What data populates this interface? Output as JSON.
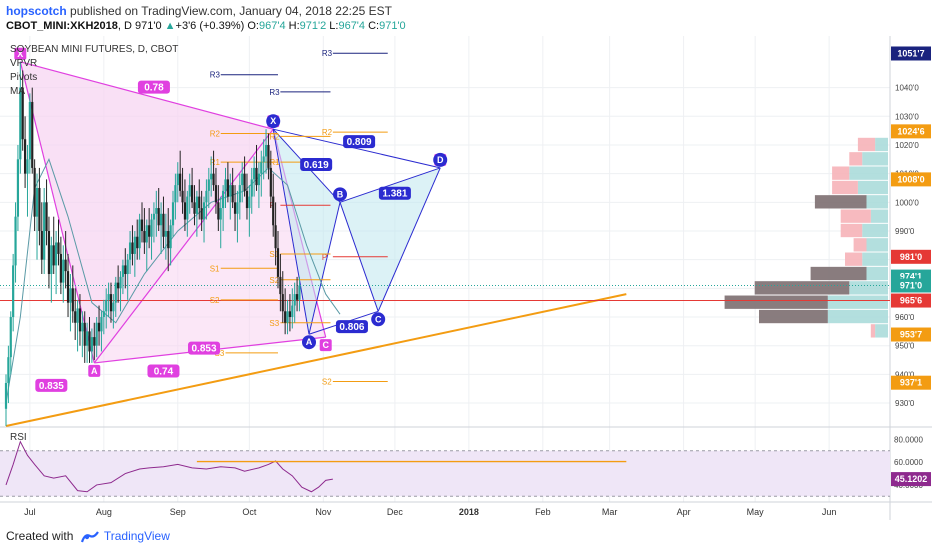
{
  "header": {
    "author": "hopscotch",
    "published_text": "published on TradingView.com, January 04, 2018 22:25 EST",
    "symbol": "CBOT_MINI:XKH2018",
    "interval": "D",
    "last": "971'0",
    "change_arrow": "▲",
    "change": "+3'6 (+0.39%)",
    "open_label": "O:",
    "open": "967'4",
    "high_label": "H:",
    "high": "971'2",
    "low_label": "L:",
    "low": "967'4",
    "close_label": "C:",
    "close": "971'0"
  },
  "legend": [
    "SOYBEAN MINI FUTURES, D, CBOT",
    "VPVR",
    "Pivots",
    "MA"
  ],
  "footer": {
    "created_with": "Created with",
    "brand": "TradingView"
  },
  "colors": {
    "up": "#26a69a",
    "down": "#ef5350",
    "candle": "#222222",
    "pink": "#e040e0",
    "blue": "#2b2bd0",
    "orange": "#f39c12",
    "red_line": "#e53935",
    "ma": "#5a9aa6",
    "rsi": "#8e2a8e"
  },
  "chart_data": {
    "type": "candlestick",
    "title": "SOYBEAN MINI FUTURES, D, CBOT",
    "x_tick_labels": [
      "Jul",
      "Aug",
      "Sep",
      "Oct",
      "Nov",
      "Dec",
      "2018",
      "Feb",
      "Mar",
      "Apr",
      "May",
      "Jun"
    ],
    "y_tick_labels": [
      "930'0",
      "940'0",
      "950'0",
      "960'0",
      "970'0",
      "980'0",
      "990'0",
      "1000'0",
      "1010'0",
      "1020'0",
      "1030'0",
      "1040'0"
    ],
    "ylim": [
      922,
      1058
    ],
    "price_labels": [
      {
        "text": "1051'7",
        "price": 1051.9,
        "color": "#1a237e"
      },
      {
        "text": "1024'6",
        "price": 1024.75,
        "color": "#f39c12"
      },
      {
        "text": "1008'0",
        "price": 1008.0,
        "color": "#f39c12"
      },
      {
        "text": "981'0",
        "price": 981.0,
        "color": "#e53935"
      },
      {
        "text": "974'1",
        "price": 974.1,
        "color": "#26a69a"
      },
      {
        "text": "971'0",
        "price": 971.0,
        "color": "#26a69a"
      },
      {
        "text": "965'6",
        "price": 965.75,
        "color": "#e53935"
      },
      {
        "text": "953'7",
        "price": 953.9,
        "color": "#f39c12"
      },
      {
        "text": "937'1",
        "price": 937.1,
        "color": "#f39c12"
      }
    ],
    "pattern_points": [
      {
        "label": "X",
        "date_index": 6,
        "price": 1049
      },
      {
        "label": "A",
        "date_index": 37,
        "price": 944
      },
      {
        "label": "B",
        "date_index": 112,
        "price": 1025.5
      },
      {
        "label": "C",
        "date_index": 134,
        "price": 953
      },
      {
        "label": "D",
        "date_index": 182,
        "price": 1012
      }
    ],
    "pattern2_points": [
      {
        "label": "X",
        "date_index": 112,
        "price": 1025.5
      },
      {
        "label": "A",
        "date_index": 127,
        "price": 954
      },
      {
        "label": "B",
        "date_index": 140,
        "price": 1000
      },
      {
        "label": "C",
        "date_index": 156,
        "price": 962
      },
      {
        "label": "D",
        "date_index": 182,
        "price": 1012
      }
    ],
    "ratios": [
      {
        "text": "0.78",
        "date_index": 62,
        "price": 1040
      },
      {
        "text": "0.835",
        "date_index": 19,
        "price": 936
      },
      {
        "text": "0.853",
        "date_index": 83,
        "price": 949
      },
      {
        "text": "0.74",
        "date_index": 66,
        "price": 941
      },
      {
        "text": "0.619",
        "date_index": 130,
        "price": 1013
      },
      {
        "text": "0.809",
        "date_index": 148,
        "price": 1021
      },
      {
        "text": "1.381",
        "date_index": 163,
        "price": 1003
      },
      {
        "text": "0.806",
        "date_index": 145,
        "price": 956.5
      }
    ],
    "pivots": [
      {
        "label": "R3",
        "x_start": 90,
        "x_end": 114,
        "price": 1044.5
      },
      {
        "label": "R3",
        "x_start": 115,
        "x_end": 136,
        "price": 1038.5
      },
      {
        "label": "R3",
        "x_start": 137,
        "x_end": 160,
        "price": 1052
      },
      {
        "label": "R2",
        "x_start": 90,
        "x_end": 114,
        "price": 1024
      },
      {
        "label": "R2",
        "x_start": 115,
        "x_end": 136,
        "price": 1023
      },
      {
        "label": "R2",
        "x_start": 137,
        "x_end": 160,
        "price": 1024.5
      },
      {
        "label": "R1",
        "x_start": 90,
        "x_end": 114,
        "price": 1014
      },
      {
        "label": "R1",
        "x_start": 115,
        "x_end": 136,
        "price": 1014
      },
      {
        "label": "P",
        "x_start": 115,
        "x_end": 136,
        "price": 999
      },
      {
        "label": "P",
        "x_start": 137,
        "x_end": 160,
        "price": 981
      },
      {
        "label": "S1",
        "x_start": 90,
        "x_end": 114,
        "price": 977
      },
      {
        "label": "S1",
        "x_start": 115,
        "x_end": 136,
        "price": 982
      },
      {
        "label": "S2",
        "x_start": 90,
        "x_end": 114,
        "price": 966
      },
      {
        "label": "S2",
        "x_start": 115,
        "x_end": 136,
        "price": 973
      },
      {
        "label": "S3",
        "x_start": 115,
        "x_end": 136,
        "price": 958
      },
      {
        "label": "S3",
        "x_start": 92,
        "x_end": 114,
        "price": 947.5
      },
      {
        "label": "S2",
        "x_start": 137,
        "x_end": 160,
        "price": 937.5
      }
    ],
    "volume_profile": [
      {
        "price": 1020,
        "up": 3,
        "down": 4
      },
      {
        "price": 1015,
        "up": 6,
        "down": 3
      },
      {
        "price": 1010,
        "up": 9,
        "down": 4
      },
      {
        "price": 1005,
        "up": 7,
        "down": 6
      },
      {
        "price": 1000,
        "up": 5,
        "down": 12
      },
      {
        "price": 995,
        "up": 4,
        "down": 7
      },
      {
        "price": 990,
        "up": 6,
        "down": 5
      },
      {
        "price": 985,
        "up": 5,
        "down": 3
      },
      {
        "price": 980,
        "up": 6,
        "down": 4
      },
      {
        "price": 975,
        "up": 5,
        "down": 13
      },
      {
        "price": 970,
        "up": 9,
        "down": 22
      },
      {
        "price": 965,
        "up": 14,
        "down": 24
      },
      {
        "price": 960,
        "up": 14,
        "down": 16
      },
      {
        "price": 955,
        "up": 3,
        "down": 1
      }
    ],
    "rsi": {
      "label": "RSI",
      "value_label": "45.1202",
      "y_tick_labels": [
        "40.0000",
        "60.0000",
        "80.0000"
      ],
      "ylim": [
        25,
        90
      ],
      "levels": [
        70,
        30
      ]
    },
    "candles_ohlc": [
      [
        928,
        940,
        922,
        937
      ],
      [
        937,
        950,
        930,
        946
      ],
      [
        946,
        962,
        940,
        960
      ],
      [
        960,
        982,
        955,
        978
      ],
      [
        978,
        1000,
        972,
        995
      ],
      [
        995,
        1020,
        990,
        1015
      ],
      [
        1015,
        1049,
        1010,
        1040
      ],
      [
        1040,
        1046,
        1018,
        1022
      ],
      [
        1022,
        1030,
        1005,
        1010
      ],
      [
        1010,
        1020,
        995,
        1015
      ],
      [
        1015,
        1038,
        1010,
        1035
      ],
      [
        1035,
        1040,
        1010,
        1012
      ],
      [
        1012,
        1015,
        990,
        995
      ],
      [
        995,
        1010,
        980,
        1005
      ],
      [
        1005,
        1012,
        985,
        990
      ],
      [
        990,
        1000,
        975,
        980
      ],
      [
        980,
        1005,
        975,
        1000
      ],
      [
        1000,
        1008,
        985,
        990
      ],
      [
        990,
        995,
        970,
        975
      ],
      [
        975,
        988,
        965,
        985
      ],
      [
        985,
        995,
        975,
        978
      ],
      [
        978,
        990,
        968,
        986
      ],
      [
        986,
        994,
        978,
        982
      ],
      [
        982,
        988,
        968,
        972
      ],
      [
        972,
        985,
        965,
        980
      ],
      [
        980,
        990,
        970,
        976
      ],
      [
        976,
        982,
        960,
        965
      ],
      [
        965,
        975,
        955,
        970
      ],
      [
        970,
        978,
        958,
        962
      ],
      [
        962,
        970,
        952,
        958
      ],
      [
        958,
        966,
        948,
        963
      ],
      [
        963,
        968,
        950,
        955
      ],
      [
        955,
        962,
        946,
        958
      ],
      [
        958,
        962,
        944,
        950
      ],
      [
        950,
        958,
        944,
        955
      ],
      [
        955,
        960,
        944,
        948
      ],
      [
        948,
        956,
        944,
        953
      ],
      [
        953,
        958,
        945,
        950
      ],
      [
        950,
        960,
        946,
        958
      ],
      [
        958,
        964,
        950,
        955
      ],
      [
        955,
        962,
        948,
        960
      ],
      [
        960,
        966,
        954,
        962
      ],
      [
        962,
        970,
        956,
        966
      ],
      [
        966,
        972,
        960,
        968
      ],
      [
        968,
        972,
        958,
        962
      ],
      [
        962,
        968,
        956,
        965
      ],
      [
        965,
        974,
        960,
        972
      ],
      [
        972,
        978,
        965,
        970
      ],
      [
        970,
        976,
        962,
        974
      ],
      [
        974,
        980,
        968,
        978
      ],
      [
        978,
        984,
        970,
        975
      ],
      [
        975,
        982,
        966,
        980
      ],
      [
        980,
        990,
        975,
        986
      ],
      [
        986,
        992,
        978,
        982
      ],
      [
        982,
        990,
        974,
        988
      ],
      [
        988,
        994,
        980,
        984
      ],
      [
        984,
        996,
        980,
        994
      ],
      [
        994,
        1000,
        986,
        990
      ],
      [
        990,
        998,
        982,
        986
      ],
      [
        986,
        994,
        976,
        992
      ],
      [
        992,
        998,
        984,
        988
      ],
      [
        988,
        996,
        980,
        994
      ],
      [
        994,
        1000,
        986,
        996
      ],
      [
        996,
        1004,
        988,
        998
      ],
      [
        998,
        1005,
        990,
        992
      ],
      [
        992,
        1000,
        982,
        996
      ],
      [
        996,
        1002,
        984,
        988
      ],
      [
        988,
        996,
        980,
        990
      ],
      [
        990,
        998,
        976,
        984
      ],
      [
        984,
        994,
        978,
        992
      ],
      [
        992,
        1004,
        988,
        1000
      ],
      [
        1000,
        1010,
        994,
        1006
      ],
      [
        1006,
        1014,
        1000,
        1010
      ],
      [
        1010,
        1018,
        1002,
        1004
      ],
      [
        1004,
        1012,
        996,
        1000
      ],
      [
        1000,
        1008,
        990,
        994
      ],
      [
        994,
        1004,
        988,
        1002
      ],
      [
        1002,
        1010,
        996,
        1006
      ],
      [
        1006,
        1012,
        998,
        1000
      ],
      [
        1000,
        1006,
        992,
        996
      ],
      [
        996,
        1004,
        988,
        1002
      ],
      [
        1002,
        1008,
        994,
        998
      ],
      [
        998,
        1004,
        990,
        994
      ],
      [
        994,
        1002,
        986,
        1000
      ],
      [
        1000,
        1008,
        994,
        1004
      ],
      [
        1004,
        1012,
        998,
        1008
      ],
      [
        1008,
        1016,
        1002,
        1010
      ],
      [
        1010,
        1018,
        1004,
        1006
      ],
      [
        1006,
        1012,
        996,
        1000
      ],
      [
        1000,
        1006,
        990,
        994
      ],
      [
        994,
        1002,
        984,
        998
      ],
      [
        998,
        1006,
        990,
        1004
      ],
      [
        1004,
        1012,
        998,
        1008
      ],
      [
        1008,
        1014,
        1000,
        1002
      ],
      [
        1002,
        1010,
        994,
        1006
      ],
      [
        1006,
        1012,
        998,
        1000
      ],
      [
        1000,
        1006,
        990,
        996
      ],
      [
        996,
        1004,
        986,
        1000
      ],
      [
        1000,
        1010,
        994,
        1006
      ],
      [
        1006,
        1014,
        1000,
        1010
      ],
      [
        1010,
        1016,
        1002,
        1004
      ],
      [
        1004,
        1010,
        994,
        998
      ],
      [
        998,
        1006,
        988,
        1002
      ],
      [
        1002,
        1012,
        996,
        1008
      ],
      [
        1008,
        1016,
        1002,
        1012
      ],
      [
        1012,
        1020,
        1004,
        1006
      ],
      [
        1006,
        1014,
        998,
        1010
      ],
      [
        1010,
        1018,
        1002,
        1014
      ],
      [
        1014,
        1022,
        1008,
        1016
      ],
      [
        1016,
        1025.5,
        1010,
        1020
      ],
      [
        1020,
        1024,
        1008,
        1012
      ],
      [
        1012,
        1018,
        998,
        1002
      ],
      [
        1002,
        1010,
        988,
        992
      ],
      [
        992,
        1000,
        978,
        984
      ],
      [
        984,
        990,
        970,
        974
      ],
      [
        974,
        982,
        962,
        968
      ],
      [
        968,
        976,
        958,
        962
      ],
      [
        962,
        970,
        954,
        958
      ],
      [
        958,
        966,
        954,
        962
      ],
      [
        962,
        968,
        955,
        960
      ],
      [
        960,
        970,
        956,
        964
      ],
      [
        964,
        972,
        958,
        968
      ],
      [
        968,
        974,
        962,
        966
      ],
      [
        966,
        974,
        962,
        971
      ]
    ],
    "ma": [
      [
        0,
        930
      ],
      [
        6,
        960
      ],
      [
        12,
        1005
      ],
      [
        18,
        1015
      ],
      [
        26,
        995
      ],
      [
        36,
        965
      ],
      [
        46,
        958
      ],
      [
        58,
        975
      ],
      [
        72,
        990
      ],
      [
        86,
        1000
      ],
      [
        100,
        1004
      ],
      [
        110,
        1012
      ],
      [
        118,
        1006
      ],
      [
        126,
        985
      ],
      [
        134,
        968
      ],
      [
        140,
        961
      ]
    ],
    "rsi_values": [
      [
        0,
        40
      ],
      [
        3,
        58
      ],
      [
        6,
        78
      ],
      [
        9,
        66
      ],
      [
        12,
        58
      ],
      [
        16,
        48
      ],
      [
        20,
        46
      ],
      [
        25,
        48
      ],
      [
        30,
        35
      ],
      [
        34,
        34
      ],
      [
        38,
        40
      ],
      [
        44,
        42
      ],
      [
        50,
        50
      ],
      [
        56,
        54
      ],
      [
        60,
        55
      ],
      [
        66,
        56
      ],
      [
        72,
        58
      ],
      [
        78,
        55
      ],
      [
        84,
        54
      ],
      [
        90,
        56
      ],
      [
        96,
        55
      ],
      [
        100,
        52
      ],
      [
        106,
        55
      ],
      [
        110,
        58
      ],
      [
        113,
        61
      ],
      [
        116,
        54
      ],
      [
        120,
        48
      ],
      [
        124,
        38
      ],
      [
        128,
        34
      ],
      [
        131,
        38
      ],
      [
        134,
        44
      ],
      [
        137,
        45.1
      ]
    ],
    "rsi_trendline": {
      "start_index": 80,
      "end_index": 260,
      "value": 60.5
    },
    "support_trendline": {
      "start": [
        0,
        922
      ],
      "end": [
        260,
        968
      ]
    },
    "red_hline": {
      "price": 965.75
    },
    "x_index_range": [
      0,
      368
    ],
    "month_index": {
      "Jul": 10,
      "Aug": 41,
      "Sep": 72,
      "Oct": 102,
      "Nov": 133,
      "Dec": 163,
      "2018": 194,
      "Feb": 225,
      "Mar": 253,
      "Apr": 284,
      "May": 314,
      "Jun": 345
    }
  }
}
